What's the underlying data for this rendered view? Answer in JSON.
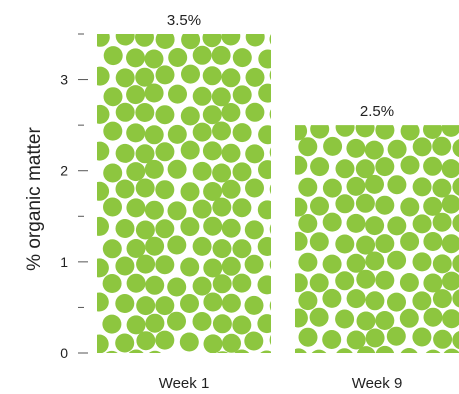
{
  "chart_data": {
    "type": "bar",
    "categories": [
      "Week 1",
      "Week 9"
    ],
    "values": [
      3.5,
      2.5
    ],
    "data_labels": [
      "3.5%",
      "2.5%"
    ],
    "title": "",
    "xlabel": "",
    "ylabel": "% organic matter",
    "ylim": [
      0,
      3.5
    ],
    "yticks": [
      0,
      0.5,
      1,
      1.5,
      2,
      2.5,
      3,
      3.5
    ],
    "ytick_labels": [
      "0",
      "",
      "1",
      "",
      "2",
      "",
      "3",
      ""
    ],
    "grid": false,
    "legend": "none",
    "bar_fill": "dotted pattern",
    "colors": {
      "dot": "#8dc63f",
      "background": "#ffffff",
      "text": "#222222",
      "axis": "#555555"
    }
  }
}
